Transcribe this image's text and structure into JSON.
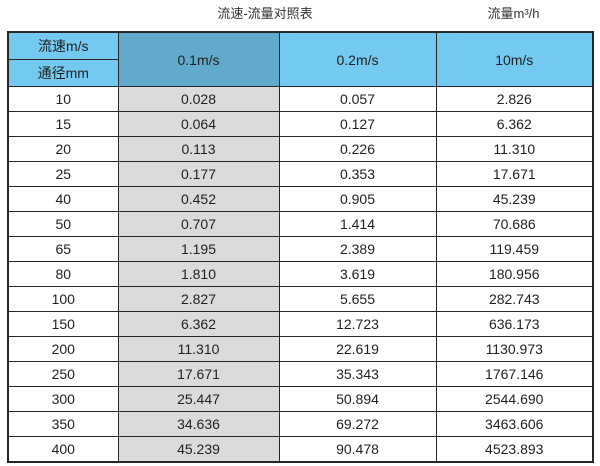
{
  "titles": {
    "main": "流速-流量对照表",
    "right": "流量m³/h"
  },
  "table": {
    "corner": {
      "top": "流速m/s",
      "bottom": "通径mm"
    },
    "velocity_columns": [
      "0.1m/s",
      "0.2m/s",
      "10m/s"
    ],
    "highlighted_column": "0.1m/s",
    "colors": {
      "header_blue": "#74c9f0",
      "header_blue_dark": "#61aacc",
      "highlight_gray": "#dbdbd9",
      "border": "#262626"
    },
    "rows": [
      {
        "diameter": "10",
        "values": [
          "0.028",
          "0.057",
          "2.826"
        ]
      },
      {
        "diameter": "15",
        "values": [
          "0.064",
          "0.127",
          "6.362"
        ]
      },
      {
        "diameter": "20",
        "values": [
          "0.113",
          "0.226",
          "11.310"
        ]
      },
      {
        "diameter": "25",
        "values": [
          "0.177",
          "0.353",
          "17.671"
        ]
      },
      {
        "diameter": "40",
        "values": [
          "0.452",
          "0.905",
          "45.239"
        ]
      },
      {
        "diameter": "50",
        "values": [
          "0.707",
          "1.414",
          "70.686"
        ]
      },
      {
        "diameter": "65",
        "values": [
          "1.195",
          "2.389",
          "119.459"
        ]
      },
      {
        "diameter": "80",
        "values": [
          "1.810",
          "3.619",
          "180.956"
        ]
      },
      {
        "diameter": "100",
        "values": [
          "2.827",
          "5.655",
          "282.743"
        ]
      },
      {
        "diameter": "150",
        "values": [
          "6.362",
          "12.723",
          "636.173"
        ]
      },
      {
        "diameter": "200",
        "values": [
          "11.310",
          "22.619",
          "1130.973"
        ]
      },
      {
        "diameter": "250",
        "values": [
          "17.671",
          "35.343",
          "1767.146"
        ]
      },
      {
        "diameter": "300",
        "values": [
          "25.447",
          "50.894",
          "2544.690"
        ]
      },
      {
        "diameter": "350",
        "values": [
          "34.636",
          "69.272",
          "3463.606"
        ]
      },
      {
        "diameter": "400",
        "values": [
          "45.239",
          "90.478",
          "4523.893"
        ]
      }
    ]
  },
  "chart_data": {
    "type": "table",
    "title": "流速-流量对照表",
    "right_caption": "流量m³/h",
    "columns": [
      "通径mm",
      "0.1m/s",
      "0.2m/s",
      "10m/s"
    ],
    "rows": [
      [
        10,
        0.028,
        0.057,
        2.826
      ],
      [
        15,
        0.064,
        0.127,
        6.362
      ],
      [
        20,
        0.113,
        0.226,
        11.31
      ],
      [
        25,
        0.177,
        0.353,
        17.671
      ],
      [
        40,
        0.452,
        0.905,
        45.239
      ],
      [
        50,
        0.707,
        1.414,
        70.686
      ],
      [
        65,
        1.195,
        2.389,
        119.459
      ],
      [
        80,
        1.81,
        3.619,
        180.956
      ],
      [
        100,
        2.827,
        5.655,
        282.743
      ],
      [
        150,
        6.362,
        12.723,
        636.173
      ],
      [
        200,
        11.31,
        22.619,
        1130.973
      ],
      [
        250,
        17.671,
        35.343,
        1767.146
      ],
      [
        300,
        25.447,
        50.894,
        2544.69
      ],
      [
        350,
        34.636,
        69.272,
        3463.606
      ],
      [
        400,
        45.239,
        90.478,
        4523.893
      ]
    ]
  }
}
